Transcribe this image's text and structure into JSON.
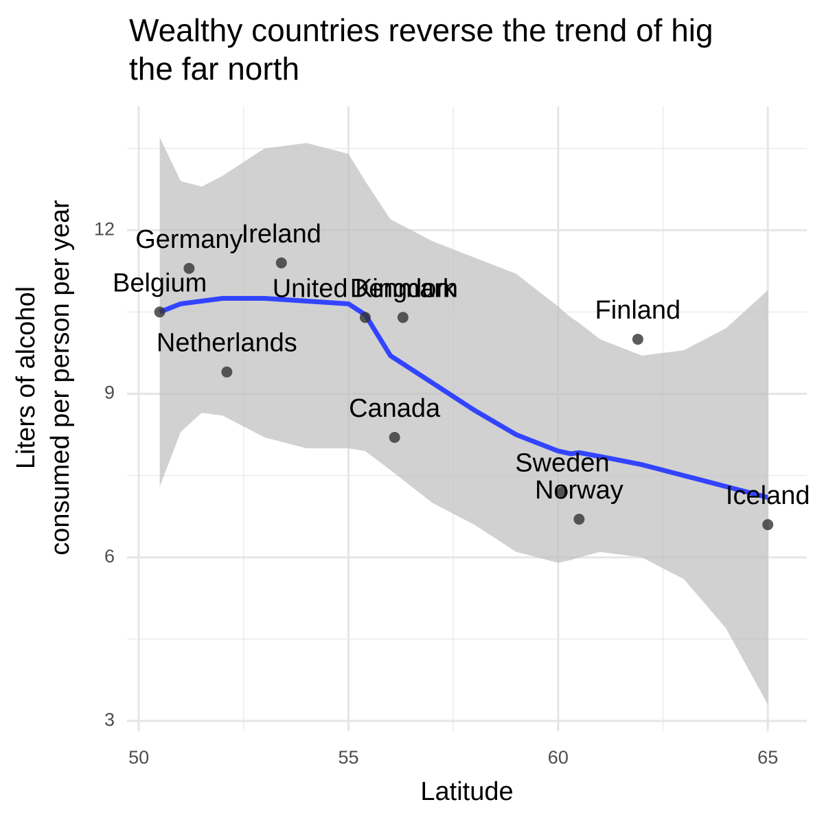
{
  "chart_data": {
    "type": "scatter",
    "title": [
      "Wealthy countries reverse the trend of hig",
      "the far north"
    ],
    "x_label": "Latitude",
    "y_label": [
      "Liters of alcohol",
      "consumed per person per year"
    ],
    "xlim": [
      49.72,
      65.93
    ],
    "ylim": [
      2.81,
      14.27
    ],
    "xticks": [
      50,
      55,
      60,
      65
    ],
    "yticks": [
      3,
      6,
      9,
      12
    ],
    "xminor": [
      52.5,
      57.5,
      62.5
    ],
    "yminor": [
      4.5,
      7.5,
      10.5,
      13.5
    ],
    "grid": true,
    "point_color": "#333333",
    "labels": [
      "Belgium",
      "Germany",
      "Ireland",
      "Netherlands",
      "United Kingdom",
      "Denmark",
      "Canada",
      "Finland",
      "Sweden",
      "Norway",
      "Iceland"
    ],
    "x": [
      50.5,
      51.2,
      53.4,
      52.1,
      55.4,
      56.3,
      56.1,
      61.9,
      60.1,
      60.5,
      65.0
    ],
    "y": [
      10.5,
      11.3,
      11.4,
      9.4,
      10.4,
      10.4,
      8.2,
      10.0,
      7.2,
      6.7,
      6.6
    ],
    "smooth": {
      "color": "#3344ff",
      "band_color": "#bdbdbd",
      "x": [
        50.5,
        51,
        51.5,
        52,
        53,
        54,
        55,
        55.4,
        56,
        57,
        58,
        59,
        60,
        60.3,
        60.5,
        61,
        62,
        63,
        64,
        65
      ],
      "values": [
        10.5,
        10.65,
        10.7,
        10.75,
        10.75,
        10.7,
        10.65,
        10.45,
        9.7,
        9.2,
        8.7,
        8.25,
        7.95,
        7.9,
        7.92,
        7.85,
        7.7,
        7.5,
        7.3,
        7.1
      ],
      "upper": [
        13.7,
        12.9,
        12.8,
        13.0,
        13.5,
        13.6,
        13.4,
        12.9,
        12.2,
        11.8,
        11.5,
        11.2,
        10.6,
        10.4,
        10.3,
        10.0,
        9.7,
        9.8,
        10.2,
        10.9
      ],
      "lower": [
        7.3,
        8.3,
        8.65,
        8.6,
        8.2,
        8.0,
        8.0,
        7.95,
        7.6,
        7.0,
        6.6,
        6.1,
        5.9,
        5.95,
        6.0,
        6.1,
        6.0,
        5.6,
        4.7,
        3.3
      ]
    }
  }
}
